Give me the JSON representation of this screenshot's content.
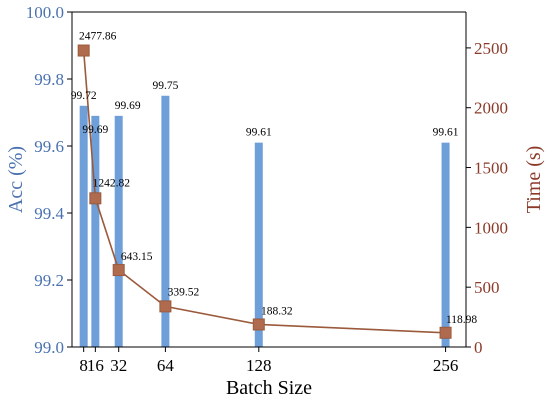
{
  "chart_data": {
    "type": "bar+line",
    "xlabel": "Batch Size",
    "x": [
      8,
      16,
      32,
      64,
      128,
      256
    ],
    "x_tick_labels": [
      "8",
      "16",
      "32",
      "64",
      "128",
      "256"
    ],
    "series": [
      {
        "type": "bar",
        "axis": "left",
        "values": [
          99.72,
          99.69,
          99.69,
          99.75,
          99.61,
          99.61
        ],
        "labels": [
          "99.72",
          "99.69",
          "99.69",
          "99.75",
          "99.61",
          "99.61"
        ],
        "color": "#6f9fd8"
      },
      {
        "type": "line",
        "axis": "right",
        "marker": "square",
        "values": [
          2477.86,
          1242.82,
          643.15,
          339.52,
          188.32,
          118.98
        ],
        "labels": [
          "2477.86",
          "1242.82",
          "643.15",
          "339.52",
          "188.32",
          "118.98"
        ],
        "color": "#9b5a3c",
        "marker_color": "#b06b4f"
      }
    ],
    "left_axis": {
      "label": "Acc (%)",
      "ylim": [
        99.0,
        100.0
      ],
      "ticks": [
        "99.0",
        "99.2",
        "99.4",
        "99.6",
        "99.8",
        "100.0"
      ],
      "tick_values": [
        99.0,
        99.2,
        99.4,
        99.6,
        99.8,
        100.0
      ],
      "color": "#4a72b0"
    },
    "right_axis": {
      "label": "Time (s)",
      "ylim": [
        0,
        2800
      ],
      "ticks": [
        "0",
        "500",
        "1000",
        "1500",
        "2000",
        "2500"
      ],
      "tick_values": [
        0,
        500,
        1000,
        1500,
        2000,
        2500
      ],
      "color": "#8b3a2a"
    },
    "xlim": [
      0,
      270
    ],
    "grid": false
  }
}
